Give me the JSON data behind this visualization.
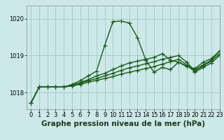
{
  "title": "Graphe pression niveau de la mer (hPa)",
  "background_color": "#cde8e8",
  "grid_color": "#a8cccc",
  "line_color": "#1a5c1a",
  "xlim": [
    -0.5,
    23
  ],
  "ylim": [
    1017.55,
    1020.35
  ],
  "yticks": [
    1018,
    1019,
    1020
  ],
  "xticks": [
    0,
    1,
    2,
    3,
    4,
    5,
    6,
    7,
    8,
    9,
    10,
    11,
    12,
    13,
    14,
    15,
    16,
    17,
    18,
    19,
    20,
    21,
    22,
    23
  ],
  "series": [
    [
      1017.72,
      1018.15,
      1018.15,
      1018.15,
      1018.15,
      1018.22,
      1018.32,
      1018.45,
      1018.58,
      1019.28,
      1019.92,
      1019.93,
      1019.88,
      1019.48,
      1018.88,
      1018.55,
      1018.68,
      1018.62,
      1018.82,
      1018.7,
      1018.65,
      1018.82,
      1018.92,
      1019.12
    ],
    [
      1017.72,
      1018.15,
      1018.15,
      1018.15,
      1018.15,
      1018.2,
      1018.27,
      1018.35,
      1018.45,
      1018.52,
      1018.62,
      1018.72,
      1018.8,
      1018.85,
      1018.9,
      1018.95,
      1019.05,
      1018.88,
      1018.82,
      1018.72,
      1018.62,
      1018.75,
      1018.88,
      1019.12
    ],
    [
      1017.72,
      1018.15,
      1018.15,
      1018.15,
      1018.15,
      1018.2,
      1018.25,
      1018.32,
      1018.38,
      1018.45,
      1018.52,
      1018.6,
      1018.67,
      1018.72,
      1018.78,
      1018.83,
      1018.9,
      1018.95,
      1019.0,
      1018.82,
      1018.58,
      1018.72,
      1018.85,
      1019.05
    ],
    [
      1017.72,
      1018.15,
      1018.15,
      1018.15,
      1018.15,
      1018.18,
      1018.22,
      1018.28,
      1018.33,
      1018.38,
      1018.43,
      1018.5,
      1018.55,
      1018.6,
      1018.65,
      1018.7,
      1018.77,
      1018.83,
      1018.9,
      1018.75,
      1018.55,
      1018.68,
      1018.8,
      1019.0
    ]
  ],
  "marker": "+",
  "markersize": 4,
  "linewidth": 1.0,
  "title_fontsize": 7.5,
  "tick_fontsize": 6.0
}
